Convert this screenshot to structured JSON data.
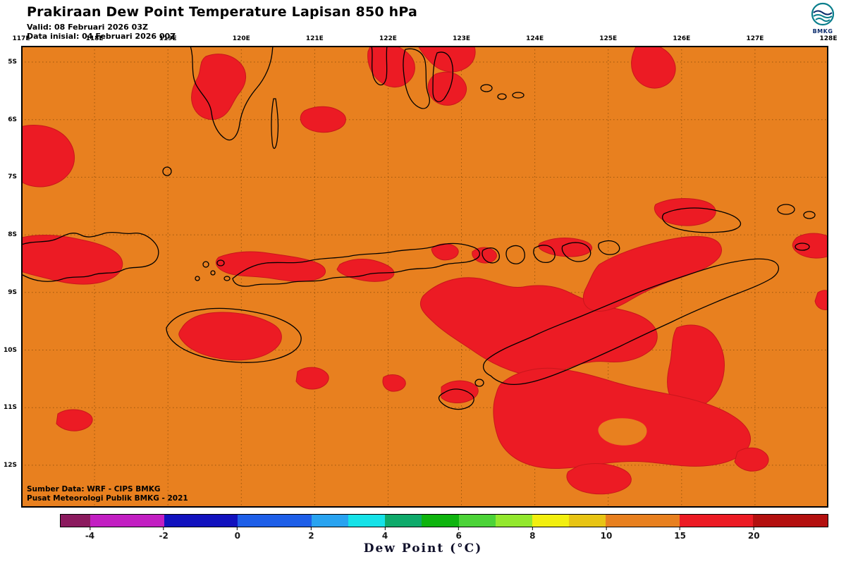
{
  "header": {
    "title": "Prakiraan Dew Point Temperature Lapisan 850 hPa",
    "valid_line": "Valid: 08 Februari 2026 03Z",
    "init_line": "Data inisial: 04 Februari 2026 00Z",
    "logo_text": "BMKG"
  },
  "map": {
    "lon_labels": [
      "117E",
      "118E",
      "119E",
      "120E",
      "121E",
      "122E",
      "123E",
      "124E",
      "125E",
      "126E",
      "127E",
      "128E"
    ],
    "lat_labels": [
      "5S",
      "6S",
      "7S",
      "8S",
      "9S",
      "10S",
      "11S",
      "12S"
    ],
    "source_line1": "Sumber Data: WRF - CIPS BMKG",
    "source_line2": "Pusat Meteorologi Publik BMKG - 2021",
    "colors": {
      "background": "#E8801F",
      "highlight": "#EC1B24",
      "coastline": "#000000",
      "grid": "#6B3A00",
      "border": "#000000"
    }
  },
  "colorbar": {
    "label": "Dew Point (°C)",
    "segments": [
      {
        "color": "#8B1A5E",
        "width": 3.9
      },
      {
        "color": "#C21FC2",
        "width": 9.6
      },
      {
        "color": "#1212BE",
        "width": 9.6
      },
      {
        "color": "#1E5FE8",
        "width": 9.6
      },
      {
        "color": "#29A3F0",
        "width": 4.8
      },
      {
        "color": "#16E2E8",
        "width": 4.8
      },
      {
        "color": "#0FAA6B",
        "width": 4.8
      },
      {
        "color": "#0FB40F",
        "width": 4.8
      },
      {
        "color": "#4CD338",
        "width": 4.8
      },
      {
        "color": "#93E82E",
        "width": 4.8
      },
      {
        "color": "#F2EF0F",
        "width": 4.8
      },
      {
        "color": "#E8C414",
        "width": 4.8
      },
      {
        "color": "#E8801F",
        "width": 9.6
      },
      {
        "color": "#EC1B24",
        "width": 9.6
      },
      {
        "color": "#B3100F",
        "width": 9.7
      }
    ],
    "ticks": [
      {
        "label": "-4",
        "pos": 3.9
      },
      {
        "label": "-2",
        "pos": 13.5
      },
      {
        "label": "0",
        "pos": 23.1
      },
      {
        "label": "2",
        "pos": 32.7
      },
      {
        "label": "4",
        "pos": 42.3
      },
      {
        "label": "6",
        "pos": 51.9
      },
      {
        "label": "8",
        "pos": 61.5
      },
      {
        "label": "10",
        "pos": 71.1
      },
      {
        "label": "15",
        "pos": 80.7
      },
      {
        "label": "20",
        "pos": 90.3
      }
    ]
  }
}
